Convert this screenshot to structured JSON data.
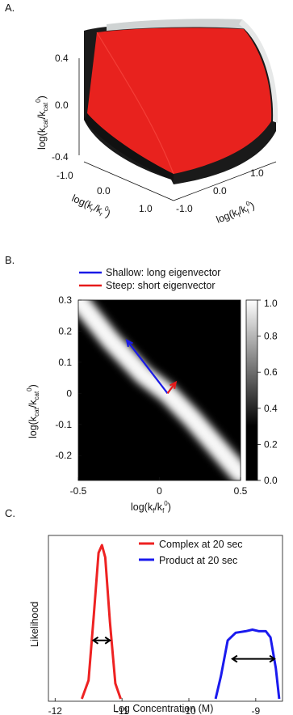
{
  "panels": {
    "a": {
      "label": "A.",
      "zlabel": "log(k",
      "zlabel_sub": "cat",
      "zlabel_mid": "/k",
      "zlabel_sub2": "cat",
      "zlabel_sup": "0",
      "zlabel_end": ")",
      "z_ticks": [
        "0.4",
        "0.0",
        "-0.4"
      ],
      "x_ticks": [
        "-1.0",
        "0.0",
        "1.0"
      ],
      "y_ticks": [
        "1.0",
        "0.0",
        "-1.0"
      ],
      "xlabel": "log(k",
      "xlabel_sub": "r",
      "xlabel_mid": "/k",
      "xlabel_sub2": "r",
      "xlabel_sup": "0",
      "xlabel_end": ")",
      "ylabel": "log(k",
      "ylabel_sub": "f",
      "ylabel_mid": "/k",
      "ylabel_sub2": "f",
      "ylabel_sup": "0",
      "ylabel_end": ")",
      "surface_color": "#e8221e"
    },
    "b": {
      "label": "B.",
      "legend": [
        {
          "text": "Shallow: long eigenvector",
          "color": "#1a1ae6"
        },
        {
          "text": "Steep: short eigenvector",
          "color": "#e61a1a"
        }
      ],
      "colorbar_ticks": [
        "1.0",
        "0.8",
        "0.6",
        "0.4",
        "0.2",
        "0.0"
      ]
    },
    "c": {
      "label": "C.",
      "ylabel": "Likelihood",
      "xlabel": "Log Concentration (M)",
      "legend": [
        {
          "text": "Complex at 20 sec",
          "color": "#ee2222"
        },
        {
          "text": "Product at 20 sec",
          "color": "#1a1aee"
        }
      ]
    }
  },
  "chart_data": {
    "type": "heatmap",
    "xlabel": "log(kf/kf0)",
    "ylabel": "log(kcat/kcat0)",
    "x_ticks": [
      "-0.5",
      "0",
      "0.5"
    ],
    "y_ticks": [
      "0.3",
      "0.2",
      "0.1",
      "0",
      "-0.1",
      "-0.2"
    ],
    "xlim": [
      -0.5,
      0.5
    ],
    "ylim": [
      -0.28,
      0.3
    ],
    "colorbar": {
      "range": [
        0.0,
        1.0
      ],
      "ticks": [
        "1.0",
        "0.8",
        "0.6",
        "0.4",
        "0.2",
        "0.0"
      ]
    },
    "ridge": [
      {
        "x": -0.5,
        "y": 0.3
      },
      {
        "x": -0.3,
        "y": 0.17
      },
      {
        "x": -0.1,
        "y": 0.06
      },
      {
        "x": 0.05,
        "y": 0.0
      },
      {
        "x": 0.2,
        "y": -0.08
      },
      {
        "x": 0.35,
        "y": -0.17
      },
      {
        "x": 0.5,
        "y": -0.26
      }
    ],
    "eigenvectors": [
      {
        "name": "Shallow: long eigenvector",
        "from": [
          0.05,
          0.0
        ],
        "to": [
          -0.2,
          0.17
        ],
        "color": "#1a1ae6"
      },
      {
        "name": "Steep: short eigenvector",
        "from": [
          0.05,
          0.0
        ],
        "to": [
          0.1,
          0.035
        ],
        "color": "#e61a1a"
      }
    ]
  },
  "chart_data_c": {
    "type": "line",
    "x_ticks": [
      "-12",
      "-11",
      "-10",
      "-9"
    ],
    "xlim": [
      -12.1,
      -8.6
    ],
    "series": [
      {
        "name": "Complex at 20 sec",
        "color": "#ee2222",
        "points": [
          [
            -11.6,
            0.0
          ],
          [
            -11.5,
            0.12
          ],
          [
            -11.42,
            0.55
          ],
          [
            -11.35,
            0.95
          ],
          [
            -11.3,
            1.0
          ],
          [
            -11.25,
            0.92
          ],
          [
            -11.18,
            0.5
          ],
          [
            -11.1,
            0.1
          ],
          [
            -11.02,
            0.0
          ]
        ]
      },
      {
        "name": "Product at 20 sec",
        "color": "#1a1aee",
        "points": [
          [
            -9.6,
            0.0
          ],
          [
            -9.52,
            0.15
          ],
          [
            -9.42,
            0.38
          ],
          [
            -9.3,
            0.43
          ],
          [
            -9.15,
            0.44
          ],
          [
            -9.05,
            0.45
          ],
          [
            -8.95,
            0.44
          ],
          [
            -8.85,
            0.44
          ],
          [
            -8.78,
            0.4
          ],
          [
            -8.7,
            0.2
          ],
          [
            -8.65,
            0.0
          ]
        ]
      }
    ],
    "width_arrows": [
      {
        "from": -11.43,
        "to": -11.18,
        "y": 0.38
      },
      {
        "from": -9.35,
        "to": -8.72,
        "y": 0.26
      }
    ]
  }
}
